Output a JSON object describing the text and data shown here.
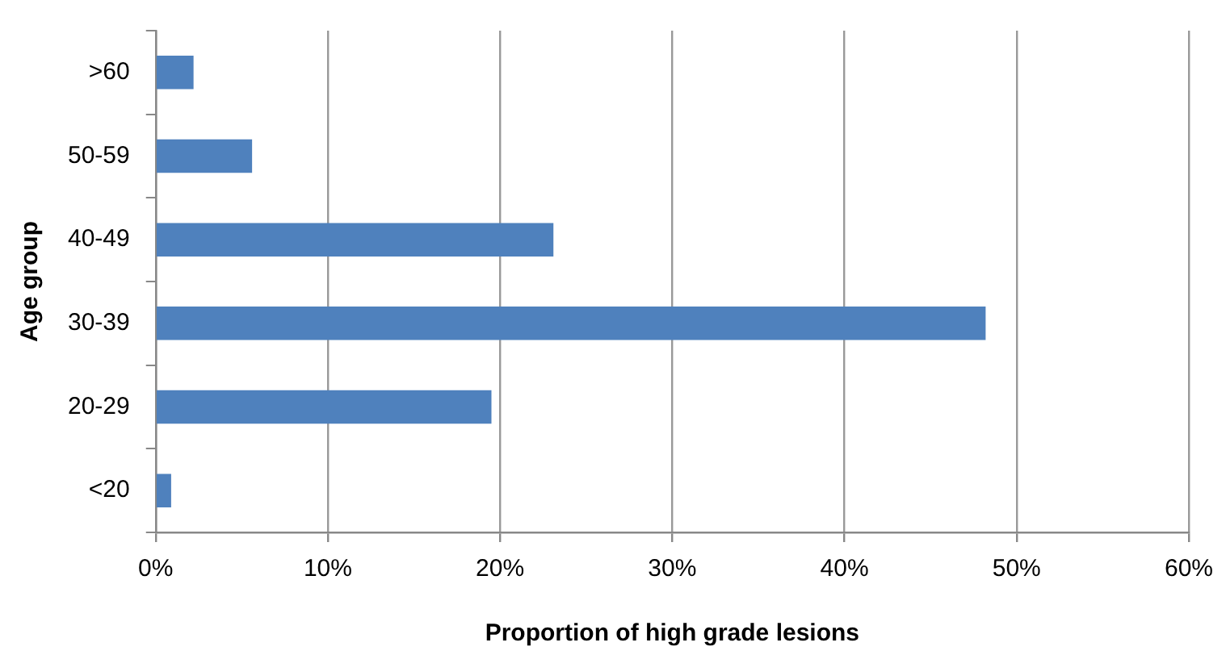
{
  "chart_data": {
    "type": "bar",
    "orientation": "horizontal",
    "xlabel": "Proportion of high grade lesions",
    "ylabel": "Age group",
    "categories": [
      ">60",
      "50-59",
      "40-49",
      "30-39",
      "20-29",
      "<20"
    ],
    "values": [
      2.2,
      5.6,
      23.1,
      48.2,
      19.5,
      0.9
    ],
    "color": "#4f81bd",
    "xlim": [
      0,
      60
    ],
    "xticks": [
      {
        "value": 0,
        "label": "0%"
      },
      {
        "value": 10,
        "label": "10%"
      },
      {
        "value": 20,
        "label": "20%"
      },
      {
        "value": 30,
        "label": "30%"
      },
      {
        "value": 40,
        "label": "40%"
      },
      {
        "value": 50,
        "label": "50%"
      },
      {
        "value": 60,
        "label": "60%"
      }
    ],
    "grid": "x"
  }
}
